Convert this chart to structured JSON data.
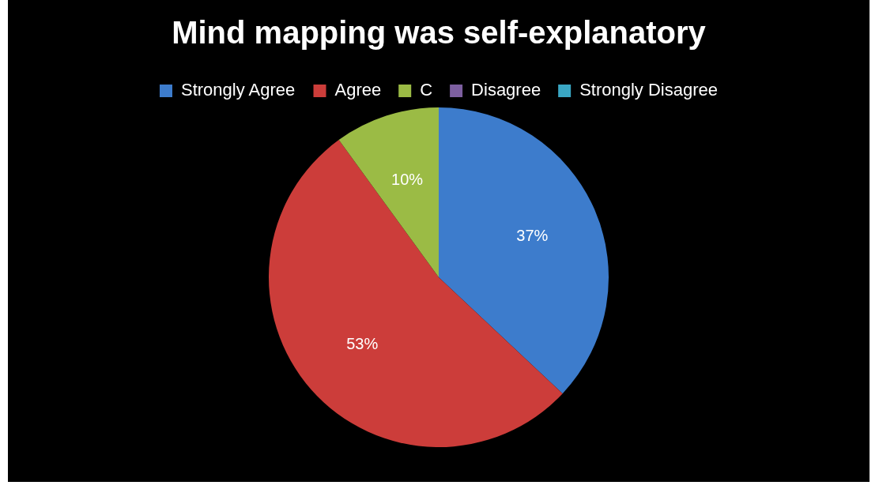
{
  "chart_data": {
    "type": "pie",
    "title": "Mind mapping was self-explanatory",
    "categories": [
      "Strongly Agree",
      "Agree",
      "C",
      "Disagree",
      "Strongly Disagree"
    ],
    "values": [
      37,
      53,
      10,
      0,
      0
    ],
    "colors": [
      "#3d7ccc",
      "#cc3d3a",
      "#9bbb45",
      "#7d5fa0",
      "#3aa7c4"
    ],
    "value_labels": [
      "37%",
      "53%",
      "10%",
      null,
      null
    ],
    "legend": "top"
  }
}
